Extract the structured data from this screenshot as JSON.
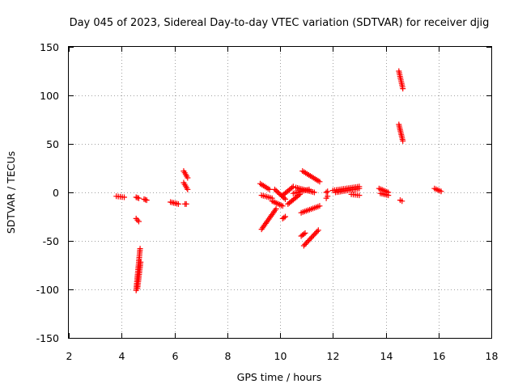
{
  "chart_data": {
    "type": "scatter",
    "title": "Day 045 of 2023, Sidereal Day-to-day VTEC variation (SDTVAR) for receiver djig",
    "xlabel": "GPS time / hours",
    "ylabel": "SDTVAR / TECUs",
    "xlim": [
      2,
      18
    ],
    "ylim": [
      -150,
      150
    ],
    "xticks": [
      2,
      4,
      6,
      8,
      10,
      12,
      14,
      16,
      18
    ],
    "yticks": [
      -150,
      -100,
      -50,
      0,
      50,
      100,
      150
    ],
    "grid": true,
    "marker": "+",
    "color": "#ff0000",
    "segments": [
      {
        "x": [
          3.8,
          4.1
        ],
        "y": [
          -4,
          -5
        ]
      },
      {
        "x": [
          4.55,
          4.65
        ],
        "y": [
          -5,
          -6
        ]
      },
      {
        "x": [
          4.85,
          4.95
        ],
        "y": [
          -7,
          -8
        ]
      },
      {
        "x": [
          4.55,
          4.65
        ],
        "y": [
          -27,
          -30
        ]
      },
      {
        "x": [
          4.55,
          4.7
        ],
        "y": [
          -101,
          -58
        ]
      },
      {
        "x": [
          4.6,
          4.72
        ],
        "y": [
          -99,
          -72
        ]
      },
      {
        "x": [
          5.85,
          6.15
        ],
        "y": [
          -10,
          -12
        ]
      },
      {
        "x": [
          6.35,
          6.5
        ],
        "y": [
          22,
          15
        ]
      },
      {
        "x": [
          6.35,
          6.5
        ],
        "y": [
          10,
          3
        ]
      },
      {
        "x": [
          6.4,
          6.45
        ],
        "y": [
          -12,
          -12
        ]
      },
      {
        "x": [
          9.25,
          9.6
        ],
        "y": [
          9,
          3
        ]
      },
      {
        "x": [
          9.3,
          9.7
        ],
        "y": [
          -3,
          -6
        ]
      },
      {
        "x": [
          9.3,
          9.85
        ],
        "y": [
          -38,
          -17
        ]
      },
      {
        "x": [
          9.7,
          10.1
        ],
        "y": [
          -9,
          -14
        ]
      },
      {
        "x": [
          9.8,
          10.2
        ],
        "y": [
          3,
          -7
        ]
      },
      {
        "x": [
          10.1,
          10.5
        ],
        "y": [
          -3,
          6
        ]
      },
      {
        "x": [
          10.1,
          10.2
        ],
        "y": [
          -27,
          -25
        ]
      },
      {
        "x": [
          10.3,
          10.75
        ],
        "y": [
          -12,
          -2
        ]
      },
      {
        "x": [
          10.5,
          11.1
        ],
        "y": [
          -1,
          3
        ]
      },
      {
        "x": [
          10.6,
          11.3
        ],
        "y": [
          5,
          0
        ]
      },
      {
        "x": [
          10.85,
          11.5
        ],
        "y": [
          22,
          11
        ]
      },
      {
        "x": [
          10.8,
          11.5
        ],
        "y": [
          -21,
          -14
        ]
      },
      {
        "x": [
          10.8,
          10.95
        ],
        "y": [
          -45,
          -42
        ]
      },
      {
        "x": [
          10.9,
          11.45
        ],
        "y": [
          -55,
          -39
        ]
      },
      {
        "x": [
          11.75,
          11.8
        ],
        "y": [
          0,
          1
        ]
      },
      {
        "x": [
          11.75,
          11.8
        ],
        "y": [
          -6,
          -4
        ]
      },
      {
        "x": [
          12.0,
          13.0
        ],
        "y": [
          2,
          6
        ]
      },
      {
        "x": [
          12.1,
          13.0
        ],
        "y": [
          0,
          4
        ]
      },
      {
        "x": [
          12.7,
          13.0
        ],
        "y": [
          -2,
          -3
        ]
      },
      {
        "x": [
          13.75,
          14.1
        ],
        "y": [
          4,
          0
        ]
      },
      {
        "x": [
          13.8,
          14.1
        ],
        "y": [
          -1,
          -3
        ]
      },
      {
        "x": [
          14.5,
          14.65
        ],
        "y": [
          125,
          107
        ]
      },
      {
        "x": [
          14.5,
          14.65
        ],
        "y": [
          70,
          53
        ]
      },
      {
        "x": [
          14.55,
          14.62
        ],
        "y": [
          -8,
          -9
        ]
      },
      {
        "x": [
          15.85,
          16.1
        ],
        "y": [
          4,
          1
        ]
      }
    ]
  }
}
